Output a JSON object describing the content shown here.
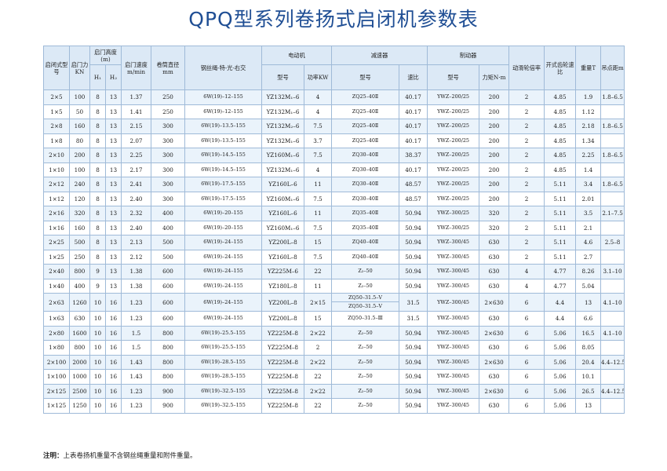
{
  "title": "QPQ型系列卷扬式启闭机参数表",
  "headers": {
    "model": "启闭式型号",
    "force": "启门力KN",
    "height": "启门高度(m)",
    "h1": "H₁",
    "h2": "H₂",
    "speed": "启门速度m/min",
    "drum": "卷筒直径mm",
    "rope": "钢丝绳-特-光-右交",
    "motor": "电动机",
    "motor_model": "型号",
    "motor_power": "功率KW",
    "reducer": "减速器",
    "reducer_model": "型号",
    "reducer_ratio": "速比",
    "brake": "制动器",
    "brake_model": "型号",
    "brake_torque": "力矩N·m",
    "pulley": "动滑轮倍率",
    "gear": "开式齿轮速比",
    "weight": "重量T",
    "distance": "吊点距m"
  },
  "rows": [
    {
      "model": "2×5",
      "force": "100",
      "h1": "8",
      "h2": "13",
      "speed": "1.37",
      "drum": "250",
      "rope": "6W(19)–12–155",
      "motor": "YZ132M₁–6",
      "power": "4",
      "reducer": "ZQ25–40Ⅱ",
      "ratio": "40.17",
      "brake": "YWZ–200/25",
      "torque": "200",
      "pulley": "2",
      "gear": "4.85",
      "weight": "1.9",
      "distance": "1.8–6.5"
    },
    {
      "model": "1×5",
      "force": "50",
      "h1": "8",
      "h2": "13",
      "speed": "1.41",
      "drum": "250",
      "rope": "6W(19)–12–155",
      "motor": "YZ132M₁–6",
      "power": "4",
      "reducer": "ZQ25–40Ⅱ",
      "ratio": "40.17",
      "brake": "YWZ–200/25",
      "torque": "200",
      "pulley": "2",
      "gear": "4.85",
      "weight": "1.12",
      "distance": ""
    },
    {
      "model": "2×8",
      "force": "160",
      "h1": "8",
      "h2": "13",
      "speed": "2.15",
      "drum": "300",
      "rope": "6W(19)–13.5–155",
      "motor": "YZ132M₂–6",
      "power": "7.5",
      "reducer": "ZQ25–40Ⅱ",
      "ratio": "40.17",
      "brake": "YWZ–200/25",
      "torque": "200",
      "pulley": "2",
      "gear": "4.85",
      "weight": "2.18",
      "distance": "1.8–6.5"
    },
    {
      "model": "1×8",
      "force": "80",
      "h1": "8",
      "h2": "13",
      "speed": "2.07",
      "drum": "300",
      "rope": "6W(19)–13.5–155",
      "motor": "YZ132M₁–6",
      "power": "3.7",
      "reducer": "ZQ25–40Ⅱ",
      "ratio": "40.17",
      "brake": "YWZ–200/25",
      "torque": "200",
      "pulley": "2",
      "gear": "4.85",
      "weight": "1.34",
      "distance": ""
    },
    {
      "model": "2×10",
      "force": "200",
      "h1": "8",
      "h2": "13",
      "speed": "2.25",
      "drum": "300",
      "rope": "6W(19)–14.5–155",
      "motor": "YZ160M₁–6",
      "power": "7.5",
      "reducer": "ZQ30–40Ⅱ",
      "ratio": "38.37",
      "brake": "YWZ–200/25",
      "torque": "200",
      "pulley": "2",
      "gear": "4.85",
      "weight": "2.25",
      "distance": "1.8–6.5"
    },
    {
      "model": "1×10",
      "force": "100",
      "h1": "8",
      "h2": "13",
      "speed": "2.17",
      "drum": "300",
      "rope": "6W(19)–14.5–155",
      "motor": "YZ132M₁–6",
      "power": "4",
      "reducer": "ZQ30–40Ⅱ",
      "ratio": "40.17",
      "brake": "YWZ–200/25",
      "torque": "200",
      "pulley": "2",
      "gear": "4.85",
      "weight": "1.4",
      "distance": ""
    },
    {
      "model": "2×12",
      "force": "240",
      "h1": "8",
      "h2": "13",
      "speed": "2.41",
      "drum": "300",
      "rope": "6W(19)–17.5–155",
      "motor": "YZ160L–6",
      "power": "11",
      "reducer": "ZQ30–40Ⅱ",
      "ratio": "48.57",
      "brake": "YWZ–200/25",
      "torque": "200",
      "pulley": "2",
      "gear": "5.11",
      "weight": "3.4",
      "distance": "1.8–6.5"
    },
    {
      "model": "1×12",
      "force": "120",
      "h1": "8",
      "h2": "13",
      "speed": "2.40",
      "drum": "300",
      "rope": "6W(19)–17.5–155",
      "motor": "YZ160M₁–6",
      "power": "7.5",
      "reducer": "ZQ30–40Ⅱ",
      "ratio": "48.57",
      "brake": "YWZ–200/25",
      "torque": "200",
      "pulley": "2",
      "gear": "5.11",
      "weight": "2.01",
      "distance": ""
    },
    {
      "model": "2×16",
      "force": "320",
      "h1": "8",
      "h2": "13",
      "speed": "2.32",
      "drum": "400",
      "rope": "6W(19)–20–155",
      "motor": "YZ160L–6",
      "power": "11",
      "reducer": "ZQ35–40Ⅱ",
      "ratio": "50.94",
      "brake": "YWZ–300/25",
      "torque": "320",
      "pulley": "2",
      "gear": "5.11",
      "weight": "3.5",
      "distance": "2.1–7.5"
    },
    {
      "model": "1×16",
      "force": "160",
      "h1": "8",
      "h2": "13",
      "speed": "2.40",
      "drum": "400",
      "rope": "6W(19)–20–155",
      "motor": "YZ160M₁–6",
      "power": "7.5",
      "reducer": "ZQ35–40Ⅱ",
      "ratio": "50.94",
      "brake": "YWZ–300/25",
      "torque": "320",
      "pulley": "2",
      "gear": "5.11",
      "weight": "2.1",
      "distance": ""
    },
    {
      "model": "2×25",
      "force": "500",
      "h1": "8",
      "h2": "13",
      "speed": "2.13",
      "drum": "500",
      "rope": "6W(19)–24–155",
      "motor": "YZ200L–8",
      "power": "15",
      "reducer": "ZQ40–40Ⅱ",
      "ratio": "50.94",
      "brake": "YWZ–300/45",
      "torque": "630",
      "pulley": "2",
      "gear": "5.11",
      "weight": "4.6",
      "distance": "2.5–8"
    },
    {
      "model": "1×25",
      "force": "250",
      "h1": "8",
      "h2": "13",
      "speed": "2.12",
      "drum": "500",
      "rope": "6W(19)–24–155",
      "motor": "YZ160L–8",
      "power": "7.5",
      "reducer": "ZQ40–40Ⅱ",
      "ratio": "50.94",
      "brake": "YWZ–300/45",
      "torque": "630",
      "pulley": "2",
      "gear": "5.11",
      "weight": "2.7",
      "distance": ""
    },
    {
      "model": "2×40",
      "force": "800",
      "h1": "9",
      "h2": "13",
      "speed": "1.38",
      "drum": "600",
      "rope": "6W(19)–24–155",
      "motor": "YZ225M–6",
      "power": "22",
      "reducer": "Z₂–50",
      "ratio": "50.94",
      "brake": "YWZ–300/45",
      "torque": "630",
      "pulley": "4",
      "gear": "4.77",
      "weight": "8.26",
      "distance": "3.1–10"
    },
    {
      "model": "1×40",
      "force": "400",
      "h1": "9",
      "h2": "13",
      "speed": "1.38",
      "drum": "600",
      "rope": "6W(19)–24–155",
      "motor": "YZ180L–8",
      "power": "11",
      "reducer": "Z₂–50",
      "ratio": "50.94",
      "brake": "YWZ–300/45",
      "torque": "630",
      "pulley": "4",
      "gear": "4.77",
      "weight": "5.04",
      "distance": ""
    },
    {
      "model": "2×63",
      "force": "1260",
      "h1": "10",
      "h2": "16",
      "speed": "1.23",
      "drum": "600",
      "rope": "6W(19)–24–155",
      "motor": "YZ200L–8",
      "power": "2×15",
      "reducer": "ZQ50–31.5–Ⅴ",
      "reducer2": "ZQ50–31.5–Ⅴ",
      "ratio": "31.5",
      "brake": "YWZ–300/45",
      "torque": "2×630",
      "pulley": "6",
      "gear": "4.4",
      "weight": "13",
      "distance": "4.1–10"
    },
    {
      "model": "1×63",
      "force": "630",
      "h1": "10",
      "h2": "16",
      "speed": "1.23",
      "drum": "600",
      "rope": "6W(19)–24–155",
      "motor": "YZ200L–8",
      "power": "15",
      "reducer": "ZQ50–31.5–Ⅲ",
      "ratio": "31.5",
      "brake": "YWZ–300/45",
      "torque": "630",
      "pulley": "6",
      "gear": "4.4",
      "weight": "6.6",
      "distance": ""
    },
    {
      "model": "2×80",
      "force": "1600",
      "h1": "10",
      "h2": "16",
      "speed": "1.5",
      "drum": "800",
      "rope": "6W(19)–25.5–155",
      "motor": "YZ225M–8",
      "power": "2×22",
      "reducer": "Z₂–50",
      "ratio": "50.94",
      "brake": "YWZ–300/45",
      "torque": "2×630",
      "pulley": "6",
      "gear": "5.06",
      "weight": "16.5",
      "distance": "4.1–10"
    },
    {
      "model": "1×80",
      "force": "800",
      "h1": "10",
      "h2": "16",
      "speed": "1.5",
      "drum": "800",
      "rope": "6W(19)–25.5–155",
      "motor": "YZ225M–8",
      "power": "2",
      "reducer": "Z₂–50",
      "ratio": "50.94",
      "brake": "YWZ–300/45",
      "torque": "630",
      "pulley": "6",
      "gear": "5.06",
      "weight": "8.05",
      "distance": ""
    },
    {
      "model": "2×100",
      "force": "2000",
      "h1": "10",
      "h2": "16",
      "speed": "1.43",
      "drum": "800",
      "rope": "6W(19)–28.5–155",
      "motor": "YZ225M–8",
      "power": "2×22",
      "reducer": "Z₂–50",
      "ratio": "50.94",
      "brake": "YWZ–300/45",
      "torque": "2×630",
      "pulley": "6",
      "gear": "5.06",
      "weight": "20.4",
      "distance": "4.4–12.5"
    },
    {
      "model": "1×100",
      "force": "1000",
      "h1": "10",
      "h2": "16",
      "speed": "1.43",
      "drum": "800",
      "rope": "6W(19)–28.5–155",
      "motor": "YZ225M–8",
      "power": "22",
      "reducer": "Z₂–50",
      "ratio": "50.94",
      "brake": "YWZ–300/45",
      "torque": "630",
      "pulley": "6",
      "gear": "5.06",
      "weight": "10.1",
      "distance": ""
    },
    {
      "model": "2×125",
      "force": "2500",
      "h1": "10",
      "h2": "16",
      "speed": "1.23",
      "drum": "900",
      "rope": "6W(19)–32.5–155",
      "motor": "YZ225M–8",
      "power": "2×22",
      "reducer": "Z₂–50",
      "ratio": "50.94",
      "brake": "YWZ–300/45",
      "torque": "2×630",
      "pulley": "6",
      "gear": "5.06",
      "weight": "26.5",
      "distance": "4.4–12.5"
    },
    {
      "model": "1×125",
      "force": "1250",
      "h1": "10",
      "h2": "16",
      "speed": "1.23",
      "drum": "900",
      "rope": "6W(19)–32.5–155",
      "motor": "YZ225M–8",
      "power": "22",
      "reducer": "Z₂–50",
      "ratio": "50.94",
      "brake": "YWZ–300/45",
      "torque": "630",
      "pulley": "6",
      "gear": "5.06",
      "weight": "13",
      "distance": ""
    }
  ],
  "note": {
    "label": "注明：",
    "text": "上表卷扬机重量不含钢丝绳重量和附件重量。"
  }
}
